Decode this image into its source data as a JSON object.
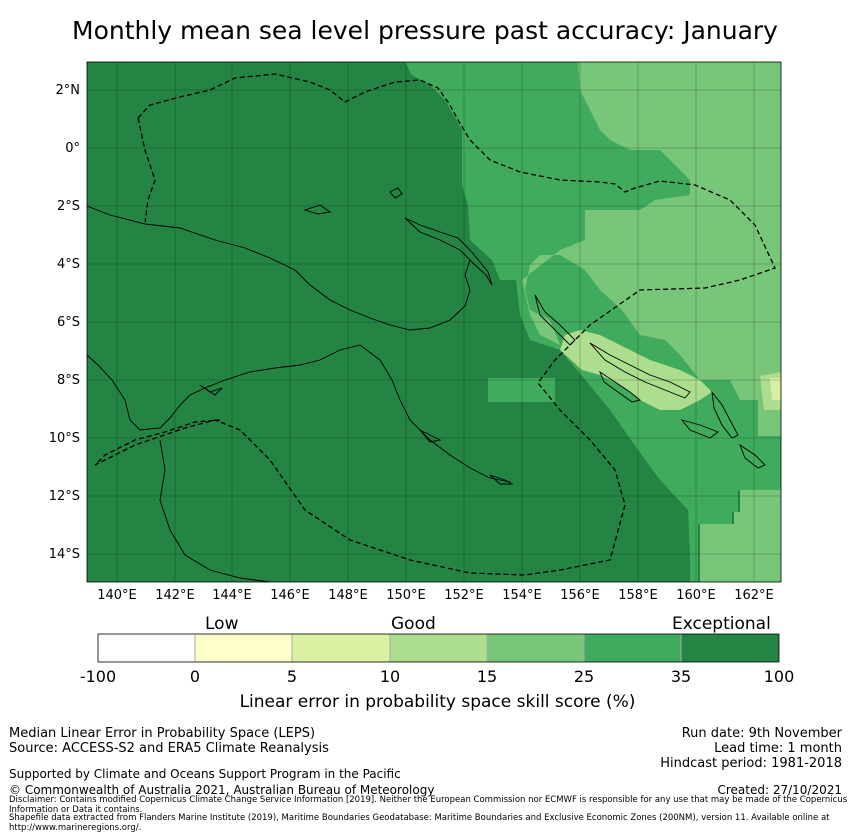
{
  "title": "Monthly mean sea level pressure past accuracy: January",
  "map": {
    "lat_labels": [
      "2°N",
      "0°",
      "2°S",
      "4°S",
      "6°S",
      "8°S",
      "10°S",
      "12°S",
      "14°S"
    ],
    "lon_labels": [
      "140°E",
      "142°E",
      "144°E",
      "146°E",
      "148°E",
      "150°E",
      "152°E",
      "154°E",
      "156°E",
      "158°E",
      "160°E",
      "162°E"
    ]
  },
  "colorbar": {
    "categories": [
      "Low",
      "Good",
      "Exceptional"
    ],
    "ticks": [
      "-100",
      "0",
      "5",
      "10",
      "15",
      "25",
      "35",
      "100"
    ],
    "colors": [
      "#ffffff",
      "#ffffcc",
      "#d9f0a3",
      "#addd8e",
      "#78c679",
      "#41ab5d",
      "#238443"
    ],
    "label": "Linear error in probability space skill score (%)"
  },
  "footer": {
    "metric": "Median Linear Error in Probability Space (LEPS)",
    "source": "Source: ACCESS-S2 and ERA5 Climate Reanalysis",
    "support": "Supported by Climate and Oceans Support Program in the Pacific",
    "copyright": "© Commonwealth of Australia 2021, Australian Bureau of Meteorology",
    "run_date": "Run date: 9th November",
    "lead_time": "Lead time: 1 month",
    "hindcast": "Hindcast period: 1981-2018",
    "created": "Created: 27/10/2021",
    "disclaimer": "Disclaimer: Contains modified Copernicus Climate Change Service Information [2019]. Neither the European Commission nor ECMWF is responsible for any use that may be made of the Copernicus Information or Data it contains.",
    "shapefile": "Shapefile data extracted from Flanders Marine Institute (2019), Maritime Boundaries Geodatabase: Maritime Boundaries and Exclusive Economic Zones (200NM), version 11. Available online at http://www.marineregions.org/."
  }
}
